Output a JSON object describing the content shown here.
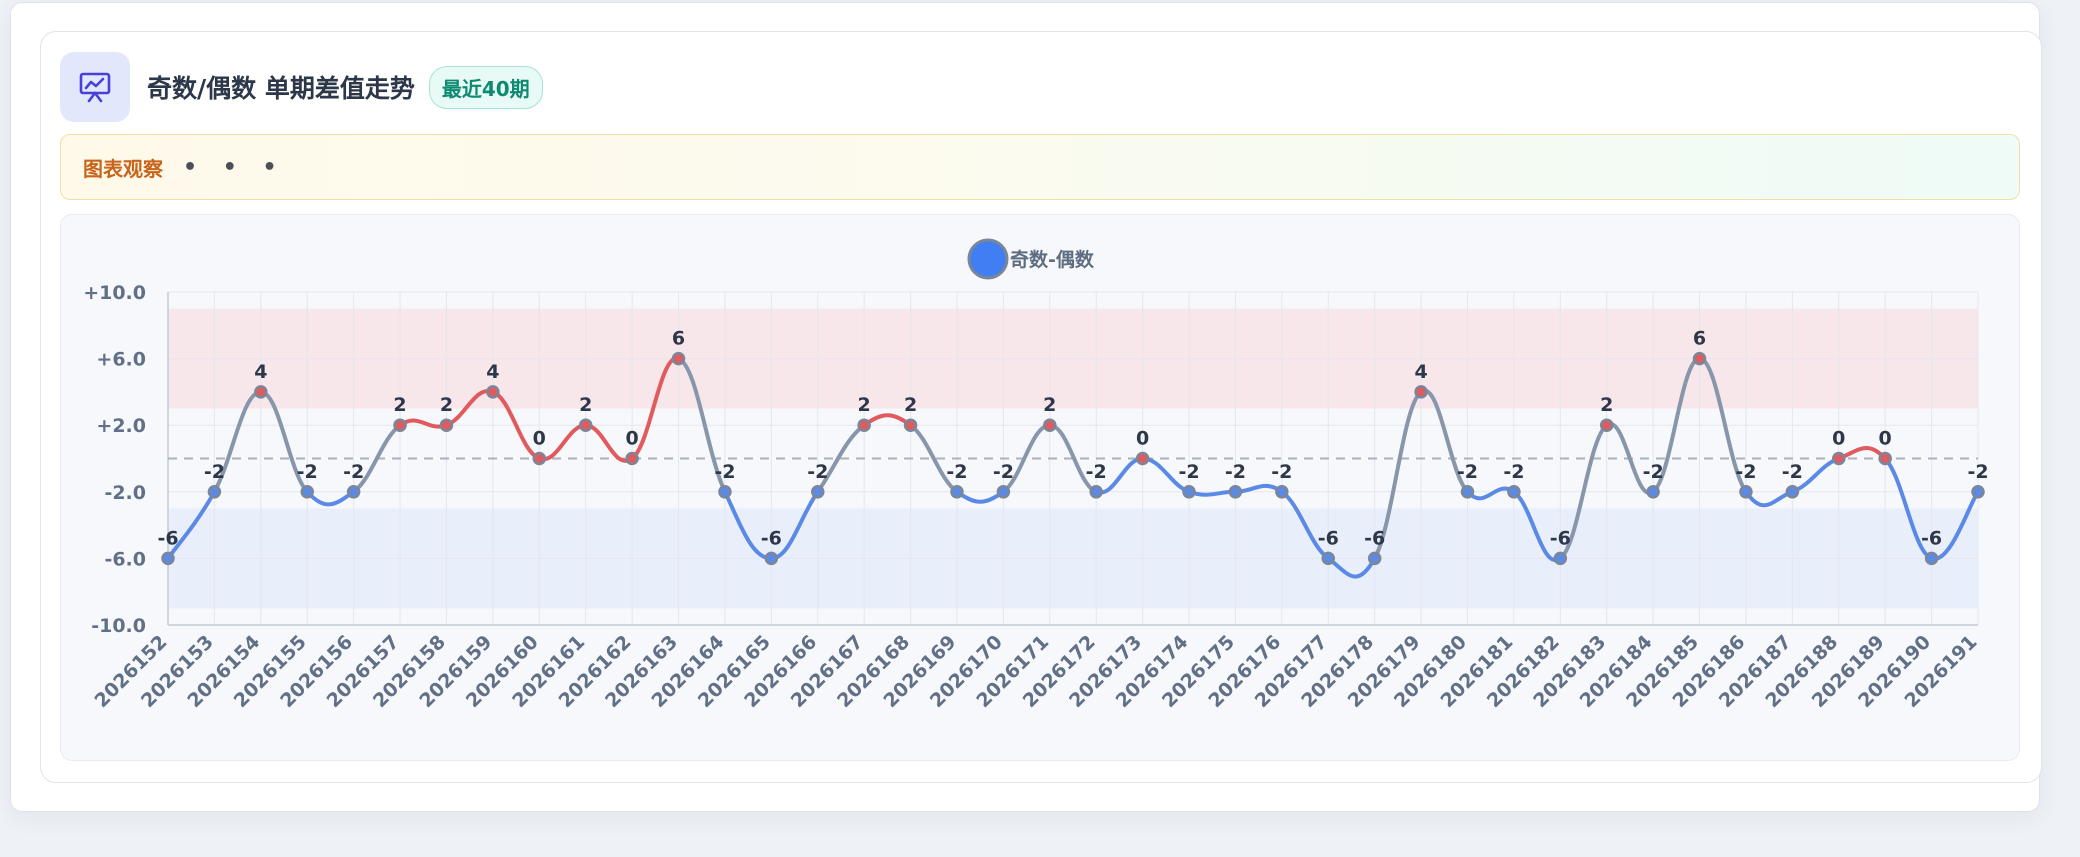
{
  "header": {
    "title": "奇数/偶数 单期差值走势",
    "badge": "最近40期",
    "icon": "presentation-chart-icon"
  },
  "observation": {
    "label": "图表观察",
    "dots": "• • •"
  },
  "colors": {
    "positive": "#e05a5e",
    "negative": "#5b8ae6",
    "neutral": "#8896ac",
    "legend": "#3f7ef3",
    "upper_band": "#f7e6ea",
    "lower_band": "#e8eefa"
  },
  "chart_data": {
    "type": "line",
    "title": "",
    "xlabel": "",
    "ylabel": "",
    "ylim": [
      -10,
      10
    ],
    "y_ticks": [
      "+10.0",
      "+6.0",
      "+2.0",
      "-2.0",
      "-6.0",
      "-10.0"
    ],
    "y_tick_values": [
      10,
      6,
      2,
      -2,
      -6,
      -10
    ],
    "bands": [
      {
        "from": 3,
        "to": 9
      },
      {
        "from": -9,
        "to": -3
      }
    ],
    "reference_line": 0,
    "grid": true,
    "legend_position": "top-center",
    "categories": [
      "2026152",
      "2026153",
      "2026154",
      "2026155",
      "2026156",
      "2026157",
      "2026158",
      "2026159",
      "2026160",
      "2026161",
      "2026162",
      "2026163",
      "2026164",
      "2026165",
      "2026166",
      "2026167",
      "2026168",
      "2026169",
      "2026170",
      "2026171",
      "2026172",
      "2026173",
      "2026174",
      "2026175",
      "2026176",
      "2026177",
      "2026178",
      "2026179",
      "2026180",
      "2026181",
      "2026182",
      "2026183",
      "2026184",
      "2026185",
      "2026186",
      "2026187",
      "2026188",
      "2026189",
      "2026190",
      "2026191"
    ],
    "series": [
      {
        "name": "奇数-偶数",
        "values": [
          -6,
          -2,
          4,
          -2,
          -2,
          2,
          2,
          4,
          0,
          2,
          0,
          6,
          -2,
          -6,
          -2,
          2,
          2,
          -2,
          -2,
          2,
          -2,
          0,
          -2,
          -2,
          -2,
          -6,
          -6,
          4,
          -2,
          -2,
          -6,
          2,
          -2,
          6,
          -2,
          -2,
          0,
          0,
          -6,
          -2
        ]
      }
    ]
  }
}
